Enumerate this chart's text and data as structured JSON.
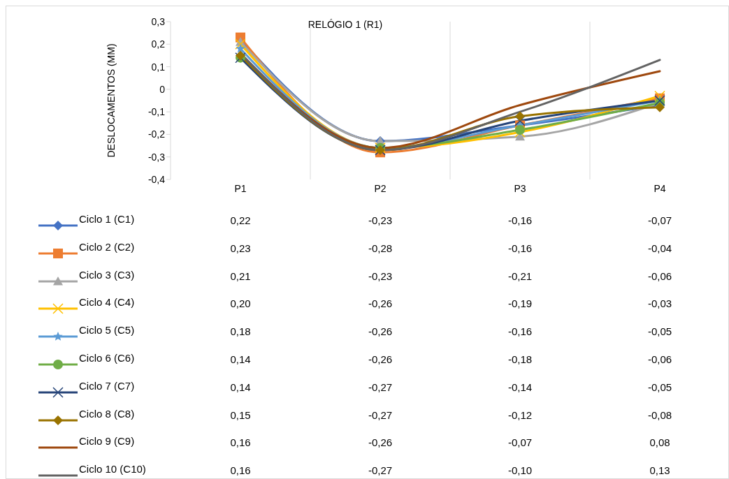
{
  "chart_data": {
    "type": "line",
    "title": "RELÓGIO 1 (R1)",
    "ylabel": "DESLOCAMENTOS (MM)",
    "categories": [
      "P1",
      "P2",
      "P3",
      "P4"
    ],
    "ylim": [
      -0.4,
      0.3
    ],
    "yticks": [
      {
        "value": -0.4,
        "label": "-0,4"
      },
      {
        "value": -0.3,
        "label": "-0,3"
      },
      {
        "value": -0.2,
        "label": "-0,2"
      },
      {
        "value": -0.1,
        "label": "-0,1"
      },
      {
        "value": 0,
        "label": "0"
      },
      {
        "value": 0.1,
        "label": "0,1"
      },
      {
        "value": 0.2,
        "label": "0,2"
      },
      {
        "value": 0.3,
        "label": "0,3"
      }
    ],
    "grid": "x",
    "legend": "bottom left",
    "line_style": "solid",
    "series": [
      {
        "name": "Ciclo 1 (C1)",
        "color": "#4472c4",
        "marker": "diamond",
        "values": [
          0.22,
          -0.23,
          -0.16,
          -0.07
        ],
        "value_labels": [
          "0,22",
          "-0,23",
          "-0,16",
          "-0,07"
        ]
      },
      {
        "name": "Ciclo 2 (C2)",
        "color": "#ed7d31",
        "marker": "square",
        "values": [
          0.23,
          -0.28,
          -0.16,
          -0.04
        ],
        "value_labels": [
          "0,23",
          "-0,28",
          "-0,16",
          "-0,04"
        ]
      },
      {
        "name": "Ciclo 3 (C3)",
        "color": "#a5a5a5",
        "marker": "triangle",
        "values": [
          0.21,
          -0.23,
          -0.21,
          -0.06
        ],
        "value_labels": [
          "0,21",
          "-0,23",
          "-0,21",
          "-0,06"
        ]
      },
      {
        "name": "Ciclo 4 (C4)",
        "color": "#ffc000",
        "marker": "cross",
        "values": [
          0.2,
          -0.26,
          -0.19,
          -0.03
        ],
        "value_labels": [
          "0,20",
          "-0,26",
          "-0,19",
          "-0,03"
        ]
      },
      {
        "name": "Ciclo 5 (C5)",
        "color": "#5b9bd5",
        "marker": "star",
        "values": [
          0.18,
          -0.26,
          -0.16,
          -0.05
        ],
        "value_labels": [
          "0,18",
          "-0,26",
          "-0,16",
          "-0,05"
        ]
      },
      {
        "name": "Ciclo 6 (C6)",
        "color": "#70ad47",
        "marker": "circle",
        "values": [
          0.14,
          -0.26,
          -0.18,
          -0.06
        ],
        "value_labels": [
          "0,14",
          "-0,26",
          "-0,18",
          "-0,06"
        ]
      },
      {
        "name": "Ciclo 7 (C7)",
        "color": "#264478",
        "marker": "cross",
        "values": [
          0.14,
          -0.27,
          -0.14,
          -0.05
        ],
        "value_labels": [
          "0,14",
          "-0,27",
          "-0,14",
          "-0,05"
        ]
      },
      {
        "name": "Ciclo 8 (C8)",
        "color": "#997300",
        "marker": "diamond",
        "values": [
          0.15,
          -0.27,
          -0.12,
          -0.08
        ],
        "value_labels": [
          "0,15",
          "-0,27",
          "-0,12",
          "-0,08"
        ]
      },
      {
        "name": "Ciclo 9 (C9)",
        "color": "#9e480e",
        "marker": "none",
        "values": [
          0.16,
          -0.26,
          -0.07,
          0.08
        ],
        "value_labels": [
          "0,16",
          "-0,26",
          "-0,07",
          "0,08"
        ]
      },
      {
        "name": "Ciclo 10 (C10)",
        "color": "#636363",
        "marker": "none",
        "values": [
          0.16,
          -0.27,
          -0.1,
          0.13
        ],
        "value_labels": [
          "0,16",
          "-0,27",
          "-0,10",
          "0,13"
        ]
      }
    ]
  }
}
